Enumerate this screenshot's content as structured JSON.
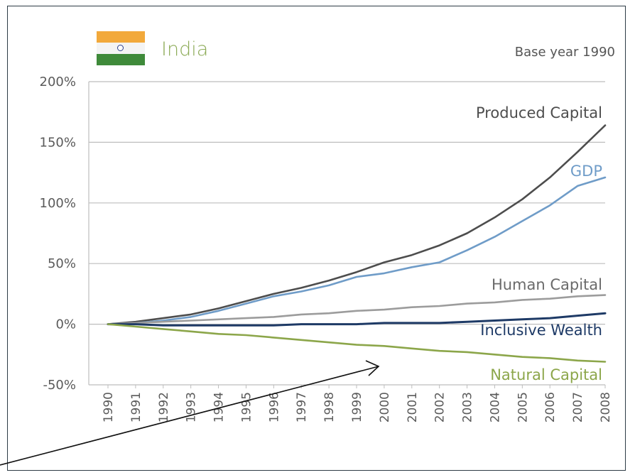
{
  "header": {
    "country": "India",
    "base_note": "Base year 1990"
  },
  "colors": {
    "produced": "#4d4d4d",
    "gdp": "#6f9cc8",
    "human": "#9c9c9c",
    "inclusive": "#1e3a66",
    "natural": "#8ca64a",
    "grid": "#bdbdbd",
    "axis_text": "#5a5a5a"
  },
  "chart_data": {
    "type": "line",
    "x": [
      "1990",
      "1991",
      "1992",
      "1993",
      "1994",
      "1995",
      "1996",
      "1997",
      "1998",
      "1999",
      "2000",
      "2001",
      "2002",
      "2003",
      "2004",
      "2005",
      "2006",
      "2007",
      "2008"
    ],
    "ylim": [
      -50,
      200
    ],
    "yticks": [
      -50,
      0,
      50,
      100,
      150,
      200
    ],
    "ytick_labels": [
      "-50%",
      "0%",
      "50%",
      "100%",
      "150%",
      "200%"
    ],
    "grid": true,
    "series": [
      {
        "name": "Produced Capital",
        "key": "produced",
        "values": [
          0,
          2,
          5,
          8,
          13,
          19,
          25,
          30,
          36,
          43,
          51,
          57,
          65,
          75,
          88,
          103,
          121,
          142,
          164
        ]
      },
      {
        "name": "GDP",
        "key": "gdp",
        "values": [
          0,
          1,
          3,
          6,
          11,
          17,
          23,
          27,
          32,
          39,
          42,
          47,
          51,
          61,
          72,
          85,
          98,
          114,
          121
        ]
      },
      {
        "name": "Human Capital",
        "key": "human",
        "values": [
          0,
          1,
          2,
          3,
          4,
          5,
          6,
          8,
          9,
          11,
          12,
          14,
          15,
          17,
          18,
          20,
          21,
          23,
          24
        ]
      },
      {
        "name": "Inclusive Wealth",
        "key": "inclusive",
        "values": [
          0,
          0,
          -1,
          -1,
          -1,
          -1,
          -1,
          0,
          0,
          0,
          1,
          1,
          1,
          2,
          3,
          4,
          5,
          7,
          9
        ]
      },
      {
        "name": "Natural Capital",
        "key": "natural",
        "values": [
          0,
          -2,
          -4,
          -6,
          -8,
          -9,
          -11,
          -13,
          -15,
          -17,
          -18,
          -20,
          -22,
          -23,
          -25,
          -27,
          -28,
          -30,
          -31
        ]
      }
    ]
  }
}
